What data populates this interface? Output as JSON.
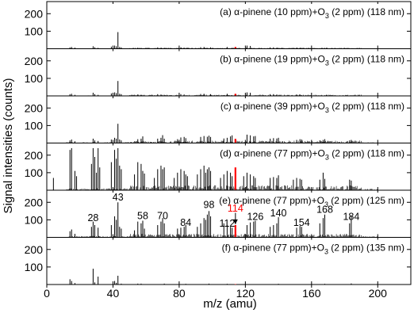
{
  "chart_data": {
    "type": "bar",
    "xlabel": "m/z (amu)",
    "ylabel": "Signal intensities (counts)",
    "xlim": [
      0,
      220
    ],
    "x_ticks": [
      0,
      40,
      80,
      120,
      160,
      200
    ],
    "x_tick_labels": [
      "0",
      "40",
      "80",
      "120",
      "160",
      "200"
    ],
    "ylim": [
      0,
      260
    ],
    "y_ticks": [
      100,
      200
    ],
    "y_tick_labels": [
      "100",
      "200"
    ],
    "highlight_mz": 114,
    "highlight_color": "#ff0000",
    "bar_color": "#000000",
    "panels": [
      {
        "label": "(a) α-pinene (10 ppm)+O",
        "label_sub": "3",
        "label_end": " (2 ppm) (118 nm)",
        "noise_level": 6,
        "highlight_value": 10,
        "peaks": [
          [
            14,
            8
          ],
          [
            15,
            10
          ],
          [
            17,
            6
          ],
          [
            28,
            14
          ],
          [
            29,
            8
          ],
          [
            31,
            5
          ],
          [
            39,
            12
          ],
          [
            41,
            18
          ],
          [
            42,
            14
          ],
          [
            43,
            95
          ],
          [
            44,
            10
          ],
          [
            45,
            8
          ],
          [
            55,
            6
          ],
          [
            57,
            5
          ],
          [
            67,
            8
          ],
          [
            69,
            6
          ],
          [
            71,
            5
          ],
          [
            81,
            8
          ],
          [
            83,
            6
          ],
          [
            93,
            9
          ],
          [
            95,
            10
          ],
          [
            99,
            8
          ],
          [
            109,
            10
          ],
          [
            114,
            10
          ],
          [
            121,
            18
          ],
          [
            123,
            16
          ],
          [
            135,
            8
          ],
          [
            137,
            8
          ],
          [
            139,
            6
          ],
          [
            151,
            6
          ],
          [
            153,
            6
          ],
          [
            169,
            5
          ]
        ]
      },
      {
        "label": "(b) α-pinene (19 ppm)+O",
        "label_sub": "3",
        "label_end": " (2 ppm) (118 nm)",
        "noise_level": 7,
        "highlight_value": 12,
        "peaks": [
          [
            14,
            10
          ],
          [
            15,
            12
          ],
          [
            17,
            6
          ],
          [
            28,
            18
          ],
          [
            29,
            10
          ],
          [
            31,
            6
          ],
          [
            39,
            14
          ],
          [
            41,
            20
          ],
          [
            42,
            16
          ],
          [
            43,
            85
          ],
          [
            44,
            12
          ],
          [
            45,
            10
          ],
          [
            55,
            8
          ],
          [
            57,
            6
          ],
          [
            67,
            10
          ],
          [
            69,
            8
          ],
          [
            71,
            6
          ],
          [
            81,
            10
          ],
          [
            83,
            8
          ],
          [
            93,
            11
          ],
          [
            95,
            12
          ],
          [
            99,
            10
          ],
          [
            109,
            12
          ],
          [
            114,
            12
          ],
          [
            121,
            20
          ],
          [
            123,
            18
          ],
          [
            135,
            10
          ],
          [
            137,
            10
          ],
          [
            139,
            8
          ],
          [
            151,
            8
          ],
          [
            153,
            8
          ],
          [
            169,
            6
          ]
        ]
      },
      {
        "label": "(c) α-pinene (39 ppm)+O",
        "label_sub": "3",
        "label_end": " (2 ppm) (118 nm)",
        "noise_level": 14,
        "highlight_value": 24,
        "peaks": [
          [
            14,
            15
          ],
          [
            15,
            20
          ],
          [
            17,
            10
          ],
          [
            28,
            25
          ],
          [
            29,
            15
          ],
          [
            31,
            12
          ],
          [
            39,
            20
          ],
          [
            41,
            30
          ],
          [
            42,
            25
          ],
          [
            43,
            110
          ],
          [
            44,
            20
          ],
          [
            45,
            15
          ],
          [
            55,
            22
          ],
          [
            57,
            25
          ],
          [
            58,
            38
          ],
          [
            67,
            25
          ],
          [
            69,
            30
          ],
          [
            70,
            45
          ],
          [
            71,
            25
          ],
          [
            79,
            22
          ],
          [
            81,
            32
          ],
          [
            83,
            35
          ],
          [
            84,
            28
          ],
          [
            93,
            35
          ],
          [
            95,
            40
          ],
          [
            97,
            36
          ],
          [
            98,
            42
          ],
          [
            99,
            35
          ],
          [
            107,
            26
          ],
          [
            109,
            30
          ],
          [
            111,
            38
          ],
          [
            112,
            44
          ],
          [
            114,
            24
          ],
          [
            121,
            48
          ],
          [
            123,
            44
          ],
          [
            125,
            38
          ],
          [
            126,
            40
          ],
          [
            135,
            25
          ],
          [
            137,
            28
          ],
          [
            139,
            26
          ],
          [
            140,
            30
          ],
          [
            151,
            18
          ],
          [
            153,
            22
          ],
          [
            154,
            20
          ],
          [
            165,
            15
          ],
          [
            167,
            18
          ],
          [
            168,
            22
          ],
          [
            183,
            15
          ],
          [
            184,
            18
          ]
        ]
      },
      {
        "label": "(d) α-pinene (77 ppm)+O",
        "label_sub": "3",
        "label_end": " (2 ppm) (118 nm)",
        "noise_level": 28,
        "highlight_value": 130,
        "peaks": [
          [
            4,
            70
          ],
          [
            14,
            230
          ],
          [
            15,
            240
          ],
          [
            17,
            110
          ],
          [
            18,
            80
          ],
          [
            27,
            150
          ],
          [
            28,
            240
          ],
          [
            29,
            190
          ],
          [
            30,
            100
          ],
          [
            31,
            240
          ],
          [
            32,
            130
          ],
          [
            39,
            160
          ],
          [
            41,
            230
          ],
          [
            42,
            180
          ],
          [
            43,
            240
          ],
          [
            44,
            140
          ],
          [
            45,
            120
          ],
          [
            53,
            90
          ],
          [
            55,
            160
          ],
          [
            57,
            150
          ],
          [
            58,
            110
          ],
          [
            59,
            95
          ],
          [
            65,
            70
          ],
          [
            67,
            120
          ],
          [
            69,
            140
          ],
          [
            70,
            120
          ],
          [
            71,
            130
          ],
          [
            77,
            70
          ],
          [
            79,
            100
          ],
          [
            81,
            120
          ],
          [
            83,
            110
          ],
          [
            84,
            90
          ],
          [
            85,
            80
          ],
          [
            91,
            90
          ],
          [
            93,
            120
          ],
          [
            95,
            140
          ],
          [
            96,
            100
          ],
          [
            97,
            120
          ],
          [
            98,
            130
          ],
          [
            99,
            110
          ],
          [
            105,
            70
          ],
          [
            107,
            90
          ],
          [
            109,
            110
          ],
          [
            111,
            100
          ],
          [
            112,
            80
          ],
          [
            114,
            130
          ],
          [
            119,
            80
          ],
          [
            121,
            100
          ],
          [
            123,
            90
          ],
          [
            125,
            80
          ],
          [
            126,
            70
          ],
          [
            135,
            70
          ],
          [
            137,
            75
          ],
          [
            139,
            70
          ],
          [
            140,
            85
          ],
          [
            149,
            60
          ],
          [
            151,
            70
          ],
          [
            153,
            65
          ],
          [
            154,
            60
          ],
          [
            165,
            60
          ],
          [
            167,
            100
          ],
          [
            168,
            65
          ],
          [
            183,
            60
          ],
          [
            184,
            55
          ]
        ]
      },
      {
        "label": "(e) α-pinene (77 ppm)+O",
        "label_sub": "3",
        "label_end": " (2 ppm) (125 nm)",
        "noise_level": 20,
        "highlight_value": 70,
        "peaks": [
          [
            14,
            35
          ],
          [
            15,
            45
          ],
          [
            17,
            20
          ],
          [
            27,
            60
          ],
          [
            28,
            90
          ],
          [
            29,
            70
          ],
          [
            31,
            55
          ],
          [
            39,
            70
          ],
          [
            41,
            120
          ],
          [
            42,
            100
          ],
          [
            43,
            200
          ],
          [
            44,
            60
          ],
          [
            45,
            50
          ],
          [
            53,
            40
          ],
          [
            55,
            90
          ],
          [
            57,
            80
          ],
          [
            58,
            95
          ],
          [
            59,
            50
          ],
          [
            67,
            70
          ],
          [
            69,
            90
          ],
          [
            70,
            110
          ],
          [
            71,
            80
          ],
          [
            79,
            50
          ],
          [
            81,
            55
          ],
          [
            83,
            60
          ],
          [
            84,
            70
          ],
          [
            91,
            60
          ],
          [
            93,
            80
          ],
          [
            95,
            110
          ],
          [
            96,
            100
          ],
          [
            97,
            130
          ],
          [
            98,
            150
          ],
          [
            99,
            120
          ],
          [
            107,
            80
          ],
          [
            109,
            70
          ],
          [
            111,
            60
          ],
          [
            112,
            55
          ],
          [
            114,
            70
          ],
          [
            121,
            70
          ],
          [
            123,
            85
          ],
          [
            125,
            90
          ],
          [
            126,
            95
          ],
          [
            135,
            60
          ],
          [
            137,
            70
          ],
          [
            139,
            80
          ],
          [
            140,
            115
          ],
          [
            151,
            55
          ],
          [
            153,
            65
          ],
          [
            154,
            60
          ],
          [
            165,
            80
          ],
          [
            167,
            110
          ],
          [
            168,
            130
          ],
          [
            183,
            80
          ],
          [
            184,
            120
          ]
        ],
        "annotations": [
          {
            "text": "28",
            "mz": 28,
            "y": 93,
            "color": "#000000"
          },
          {
            "text": "43",
            "mz": 43,
            "y": 210,
            "color": "#000000"
          },
          {
            "text": "58",
            "mz": 58,
            "y": 105,
            "color": "#000000"
          },
          {
            "text": "70",
            "mz": 70,
            "y": 105,
            "color": "#000000"
          },
          {
            "text": "84",
            "mz": 84,
            "y": 65,
            "color": "#000000"
          },
          {
            "text": "98",
            "mz": 98,
            "y": 168,
            "color": "#000000"
          },
          {
            "text": "114",
            "mz": 114,
            "y": 148,
            "color": "#ff0000"
          },
          {
            "text": "112",
            "mz": 109,
            "y": 60,
            "color": "#000000"
          },
          {
            "text": "126",
            "mz": 126,
            "y": 100,
            "color": "#000000"
          },
          {
            "text": "140",
            "mz": 140,
            "y": 120,
            "color": "#000000"
          },
          {
            "text": "154",
            "mz": 154,
            "y": 65,
            "color": "#000000"
          },
          {
            "text": "168",
            "mz": 168,
            "y": 140,
            "color": "#000000"
          },
          {
            "text": "184",
            "mz": 184,
            "y": 100,
            "color": "#000000"
          }
        ],
        "arrow": {
          "mz": 114,
          "from": 140,
          "to": 75
        }
      },
      {
        "label": "(f) α-pinene (77 ppm)+O",
        "label_sub": "3",
        "label_end": " (2 ppm) (135 nm)",
        "noise_level": 2,
        "highlight_value": 2,
        "peaks": [
          [
            14,
            30
          ],
          [
            15,
            20
          ],
          [
            17,
            8
          ],
          [
            28,
            90
          ],
          [
            29,
            12
          ],
          [
            31,
            45
          ],
          [
            41,
            20
          ],
          [
            42,
            10
          ],
          [
            43,
            50
          ],
          [
            45,
            5
          ],
          [
            55,
            5
          ],
          [
            57,
            5
          ],
          [
            71,
            5
          ],
          [
            84,
            4
          ],
          [
            98,
            5
          ],
          [
            109,
            4
          ],
          [
            114,
            2
          ],
          [
            140,
            4
          ],
          [
            168,
            4
          ],
          [
            184,
            6
          ]
        ]
      }
    ]
  }
}
